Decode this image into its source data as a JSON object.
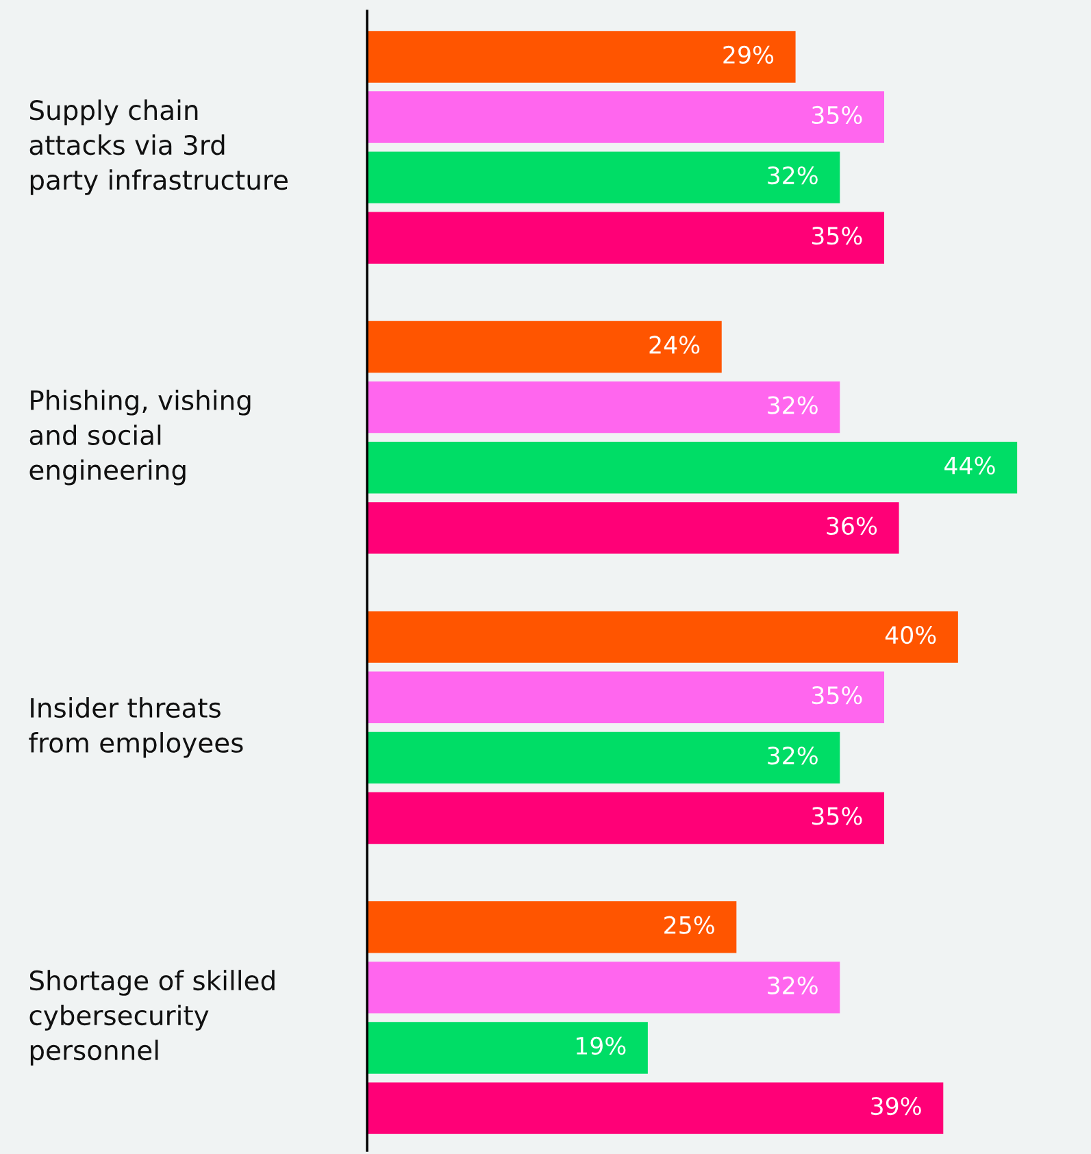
{
  "chart_data": {
    "type": "bar",
    "orientation": "horizontal",
    "categories": [
      "Supply chain\nattacks via 3rd\nparty infrastructure",
      "Phishing, vishing\nand social\nengineering",
      "Insider threats\nfrom employees",
      "Shortage of skilled\ncybersecurity\npersonnel"
    ],
    "series": [
      {
        "color": "#ff5500",
        "values": [
          29,
          24,
          40,
          25
        ],
        "value_labels": [
          "29%",
          "24%",
          "40%",
          "25%"
        ]
      },
      {
        "color": "#ff66ee",
        "values": [
          35,
          32,
          35,
          32
        ],
        "value_labels": [
          "35%",
          "32%",
          "35%",
          "32%"
        ]
      },
      {
        "color": "#00dd66",
        "values": [
          32,
          44,
          32,
          19
        ],
        "value_labels": [
          "32%",
          "44%",
          "32%",
          "19%"
        ]
      },
      {
        "color": "#ff0077",
        "values": [
          35,
          36,
          35,
          39
        ],
        "value_labels": [
          "35%",
          "36%",
          "35%",
          "39%"
        ]
      }
    ],
    "xlim": [
      0,
      49
    ],
    "legend": false
  }
}
